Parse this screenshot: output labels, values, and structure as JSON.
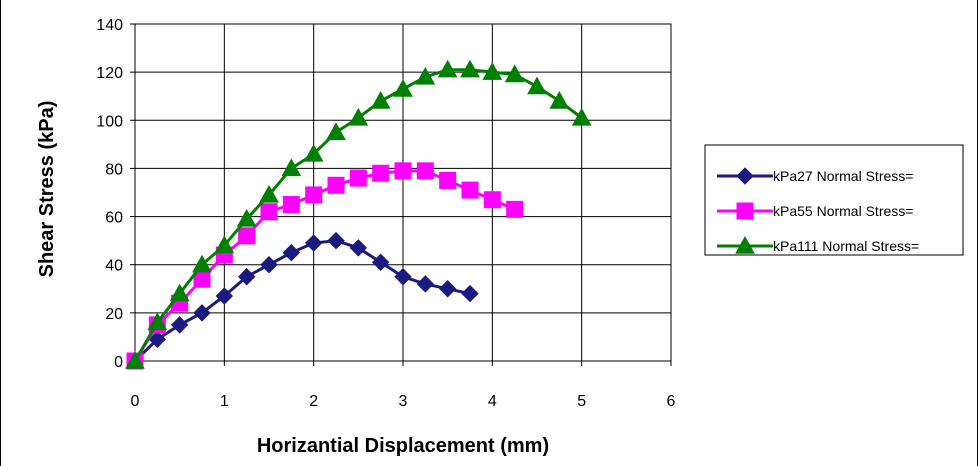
{
  "chart_data": {
    "type": "line",
    "title": "",
    "xlabel": "Horizantial Displacement (mm)",
    "ylabel": "Shear Stress (kPa)",
    "xlim": [
      0,
      6
    ],
    "ylim": [
      0,
      140
    ],
    "xticks": [
      0,
      1,
      2,
      3,
      4,
      5,
      6
    ],
    "yticks": [
      0,
      20,
      40,
      60,
      80,
      100,
      120,
      140
    ],
    "grid": true,
    "legend_position": "right",
    "series": [
      {
        "name": "kPa27 Normal Stress=",
        "color": "#1A1A80",
        "marker": "diamond",
        "x": [
          0,
          0.25,
          0.5,
          0.75,
          1,
          1.25,
          1.5,
          1.75,
          2,
          2.25,
          2.5,
          2.75,
          3,
          3.25,
          3.5,
          3.75
        ],
        "y": [
          0,
          9,
          15,
          20,
          27,
          35,
          40,
          45,
          49,
          50,
          47,
          41,
          35,
          32,
          30,
          28
        ]
      },
      {
        "name": "kPa55 Normal Stress=",
        "color": "#FF00FF",
        "marker": "square",
        "x": [
          0,
          0.25,
          0.5,
          0.75,
          1,
          1.25,
          1.5,
          1.75,
          2,
          2.25,
          2.5,
          2.75,
          3,
          3.25,
          3.5,
          3.75,
          4,
          4.25
        ],
        "y": [
          0,
          15,
          24,
          34,
          44,
          52,
          62,
          65,
          69,
          73,
          76,
          78,
          79,
          79,
          75,
          71,
          67,
          63
        ]
      },
      {
        "name": "kPa111 Normal Stress=",
        "color": "#008000",
        "marker": "triangle",
        "x": [
          0,
          0.25,
          0.5,
          0.75,
          1,
          1.25,
          1.5,
          1.75,
          2,
          2.25,
          2.5,
          2.75,
          3,
          3.25,
          3.5,
          3.75,
          4,
          4.25,
          4.5,
          4.75,
          5
        ],
        "y": [
          0,
          16,
          28,
          40,
          48,
          59,
          69,
          80,
          86,
          95,
          101,
          108,
          113,
          118,
          121,
          121,
          120,
          119,
          114,
          108,
          101
        ]
      }
    ]
  }
}
